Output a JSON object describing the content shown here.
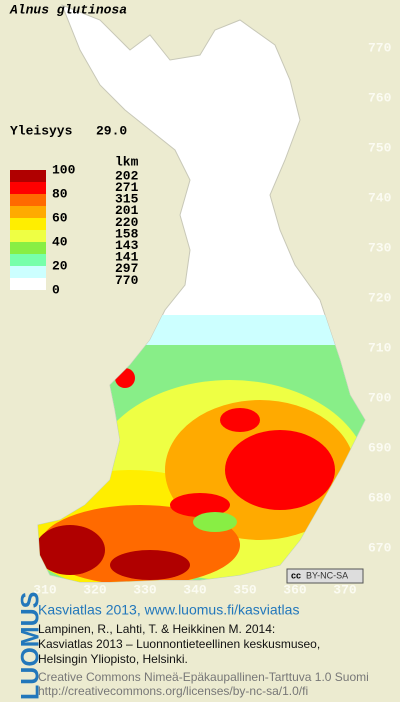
{
  "title": "Alnus glutinosa",
  "frequency": {
    "label": "Yleisyys",
    "value": "29.0"
  },
  "legend": {
    "scale_labels": [
      "100",
      "80",
      "60",
      "40",
      "20",
      "0"
    ],
    "count_header": "lkm",
    "counts": [
      202,
      271,
      315,
      201,
      220,
      158,
      143,
      141,
      297,
      770
    ],
    "colors": [
      "#b00000",
      "#ff0000",
      "#ff6a00",
      "#ffaa00",
      "#ffee00",
      "#eeff44",
      "#88ee44",
      "#77ffaa",
      "#ccffff",
      "#ffffff"
    ]
  },
  "grid": {
    "y_labels": [
      "770",
      "760",
      "750",
      "740",
      "730",
      "720",
      "710",
      "700",
      "690",
      "680",
      "670"
    ],
    "x_labels": [
      "310",
      "320",
      "330",
      "340",
      "350",
      "360",
      "370"
    ]
  },
  "license_badge": "BY-NC-SA",
  "footer": {
    "logo": "LUOMUS",
    "link": "Kasviatlas 2013, www.luomus.fi/kasviatlas",
    "citation": [
      "Lampinen, R., Lahti, T. & Heikkinen M. 2014:",
      "Kasviatlas 2013 – Luonnontieteellinen keskusmuseo,",
      "Helsingin Yliopisto, Helsinki."
    ],
    "license": [
      "Creative Commons Nimeä-Epäkaupallinen-Tarttuva 1.0 Suomi",
      "http://creativecommons.org/licenses/by-nc-sa/1.0/fi"
    ]
  }
}
